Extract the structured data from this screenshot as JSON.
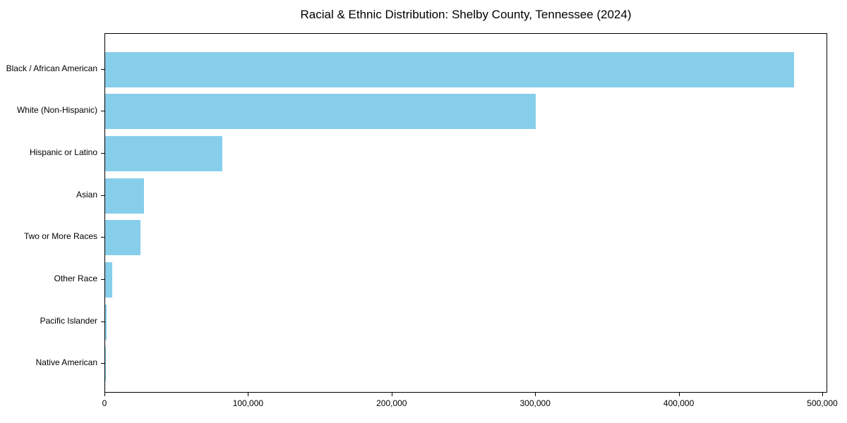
{
  "figure": {
    "background_color": "#ffffff",
    "axis_color": "#000000",
    "text_color": "#000000"
  },
  "chart_data": {
    "type": "bar",
    "orientation": "horizontal",
    "title": "Racial & Ethnic Distribution: Shelby County, Tennessee (2024)",
    "xlabel": "",
    "ylabel": "",
    "categories": [
      "Black / African American",
      "White (Non-Hispanic)",
      "Hispanic or Latino",
      "Asian",
      "Two or More Races",
      "Other Race",
      "Pacific Islander",
      "Native American"
    ],
    "values": [
      480000,
      300000,
      81500,
      27000,
      24500,
      5000,
      1200,
      500
    ],
    "bar_color": "#87CEEB",
    "xlim": [
      0,
      504000
    ],
    "x_ticks": [
      0,
      100000,
      200000,
      300000,
      400000,
      500000
    ],
    "x_tick_labels": [
      "0",
      "100,000",
      "200,000",
      "300,000",
      "400,000",
      "500,000"
    ],
    "grid": false,
    "legend": null
  }
}
